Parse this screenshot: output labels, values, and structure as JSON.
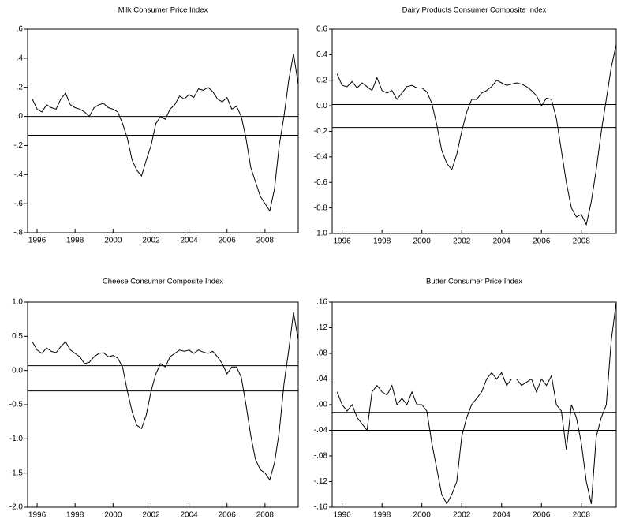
{
  "chart_data": [
    {
      "type": "line",
      "title": "Milk Consumer Price Index",
      "color": "#000000",
      "x": [
        1995.75,
        1996,
        1996.25,
        1996.5,
        1996.75,
        1997,
        1997.25,
        1997.5,
        1997.75,
        1998,
        1998.25,
        1998.5,
        1998.75,
        1999,
        1999.25,
        1999.5,
        1999.75,
        2000,
        2000.25,
        2000.5,
        2000.75,
        2001,
        2001.25,
        2001.5,
        2001.75,
        2002,
        2002.25,
        2002.5,
        2002.75,
        2003,
        2003.25,
        2003.5,
        2003.75,
        2004,
        2004.25,
        2004.5,
        2004.75,
        2005,
        2005.25,
        2005.5,
        2005.75,
        2006,
        2006.25,
        2006.5,
        2006.75,
        2007,
        2007.25,
        2007.5,
        2007.75,
        2008,
        2008.25,
        2008.5,
        2008.75,
        2009,
        2009.25,
        2009.5,
        2009.75
      ],
      "values": [
        0.12,
        0.05,
        0.03,
        0.08,
        0.06,
        0.05,
        0.12,
        0.16,
        0.08,
        0.06,
        0.05,
        0.03,
        0.0,
        0.06,
        0.08,
        0.09,
        0.06,
        0.05,
        0.03,
        -0.05,
        -0.15,
        -0.3,
        -0.37,
        -0.41,
        -0.3,
        -0.2,
        -0.05,
        0.0,
        -0.02,
        0.05,
        0.08,
        0.14,
        0.12,
        0.15,
        0.13,
        0.19,
        0.18,
        0.2,
        0.17,
        0.12,
        0.1,
        0.13,
        0.05,
        0.07,
        0.0,
        -0.15,
        -0.35,
        -0.45,
        -0.55,
        -0.6,
        -0.65,
        -0.5,
        -0.2,
        0.0,
        0.25,
        0.43,
        0.22
      ],
      "hlines": [
        0,
        -0.13
      ],
      "xlim": [
        1995.5,
        2009.75
      ],
      "xticks": [
        1996,
        1998,
        2000,
        2002,
        2004,
        2006,
        2008
      ],
      "ylim": [
        -0.8,
        0.6
      ],
      "yticks": [
        {
          "value": 0.6,
          "label": ".6"
        },
        {
          "value": 0.4,
          "label": ".4"
        },
        {
          "value": 0.2,
          "label": ".2"
        },
        {
          "value": 0,
          "label": ".0"
        },
        {
          "value": -0.2,
          "label": "-.2"
        },
        {
          "value": -0.4,
          "label": "-.4"
        },
        {
          "value": -0.6,
          "label": "-.6"
        },
        {
          "value": -0.8,
          "label": "-.8"
        }
      ]
    },
    {
      "type": "line",
      "title": "Dairy Products Consumer Composite Index",
      "color": "#000000",
      "x": [
        1995.75,
        1996,
        1996.25,
        1996.5,
        1996.75,
        1997,
        1997.25,
        1997.5,
        1997.75,
        1998,
        1998.25,
        1998.5,
        1998.75,
        1999,
        1999.25,
        1999.5,
        1999.75,
        2000,
        2000.25,
        2000.5,
        2000.75,
        2001,
        2001.25,
        2001.5,
        2001.75,
        2002,
        2002.25,
        2002.5,
        2002.75,
        2003,
        2003.25,
        2003.5,
        2003.75,
        2004,
        2004.25,
        2004.5,
        2004.75,
        2005,
        2005.25,
        2005.5,
        2005.75,
        2006,
        2006.25,
        2006.5,
        2006.75,
        2007,
        2007.25,
        2007.5,
        2007.75,
        2008,
        2008.25,
        2008.5,
        2008.75,
        2009,
        2009.25,
        2009.5,
        2009.75
      ],
      "values": [
        0.25,
        0.16,
        0.15,
        0.19,
        0.14,
        0.18,
        0.15,
        0.12,
        0.22,
        0.12,
        0.1,
        0.12,
        0.05,
        0.1,
        0.15,
        0.16,
        0.14,
        0.14,
        0.11,
        0.02,
        -0.15,
        -0.35,
        -0.45,
        -0.5,
        -0.38,
        -0.2,
        -0.05,
        0.05,
        0.05,
        0.1,
        0.12,
        0.15,
        0.2,
        0.18,
        0.16,
        0.17,
        0.18,
        0.17,
        0.15,
        0.12,
        0.08,
        0.0,
        0.06,
        0.05,
        -0.1,
        -0.35,
        -0.6,
        -0.8,
        -0.87,
        -0.85,
        -0.93,
        -0.75,
        -0.5,
        -0.2,
        0.05,
        0.3,
        0.48
      ],
      "hlines": [
        0.01,
        -0.17
      ],
      "xlim": [
        1995.5,
        2009.75
      ],
      "xticks": [
        1996,
        1998,
        2000,
        2002,
        2004,
        2006,
        2008
      ],
      "ylim": [
        -1.0,
        0.6
      ],
      "yticks": [
        0.6,
        0.4,
        0.2,
        {
          "value": 0,
          "label": "0.0"
        },
        -0.2,
        -0.4,
        -0.6,
        -0.8,
        {
          "value": -1.0,
          "label": "-1.0"
        }
      ]
    },
    {
      "type": "line",
      "title": "Cheese Consumer Composite Index",
      "color": "#000000",
      "x": [
        1995.75,
        1996,
        1996.25,
        1996.5,
        1996.75,
        1997,
        1997.25,
        1997.5,
        1997.75,
        1998,
        1998.25,
        1998.5,
        1998.75,
        1999,
        1999.25,
        1999.5,
        1999.75,
        2000,
        2000.25,
        2000.5,
        2000.75,
        2001,
        2001.25,
        2001.5,
        2001.75,
        2002,
        2002.25,
        2002.5,
        2002.75,
        2003,
        2003.25,
        2003.5,
        2003.75,
        2004,
        2004.25,
        2004.5,
        2004.75,
        2005,
        2005.25,
        2005.5,
        2005.75,
        2006,
        2006.25,
        2006.5,
        2006.75,
        2007,
        2007.25,
        2007.5,
        2007.75,
        2008,
        2008.25,
        2008.5,
        2008.75,
        2009,
        2009.25,
        2009.5,
        2009.75
      ],
      "values": [
        0.42,
        0.3,
        0.25,
        0.33,
        0.28,
        0.26,
        0.35,
        0.42,
        0.3,
        0.25,
        0.2,
        0.1,
        0.12,
        0.2,
        0.25,
        0.26,
        0.2,
        0.22,
        0.18,
        0.05,
        -0.3,
        -0.6,
        -0.8,
        -0.85,
        -0.65,
        -0.3,
        -0.05,
        0.1,
        0.05,
        0.2,
        0.25,
        0.3,
        0.28,
        0.3,
        0.25,
        0.3,
        0.27,
        0.25,
        0.28,
        0.2,
        0.1,
        -0.05,
        0.05,
        0.05,
        -0.1,
        -0.5,
        -0.95,
        -1.3,
        -1.45,
        -1.5,
        -1.6,
        -1.35,
        -0.9,
        -0.2,
        0.3,
        0.85,
        0.45
      ],
      "hlines": [
        0.07,
        -0.3
      ],
      "xlim": [
        1995.5,
        2009.75
      ],
      "xticks": [
        1996,
        1998,
        2000,
        2002,
        2004,
        2006,
        2008
      ],
      "ylim": [
        -2.0,
        1.0
      ],
      "yticks": [
        {
          "value": 1.0,
          "label": "1.0"
        },
        0.5,
        {
          "value": 0,
          "label": "0.0"
        },
        -0.5,
        {
          "value": -1.0,
          "label": "-1.0"
        },
        -1.5,
        {
          "value": -2.0,
          "label": "-2.0"
        }
      ]
    },
    {
      "type": "line",
      "title": "Butter Consumer Price Index",
      "color": "#000000",
      "x": [
        1995.75,
        1996,
        1996.25,
        1996.5,
        1996.75,
        1997,
        1997.25,
        1997.5,
        1997.75,
        1998,
        1998.25,
        1998.5,
        1998.75,
        1999,
        1999.25,
        1999.5,
        1999.75,
        2000,
        2000.25,
        2000.5,
        2000.75,
        2001,
        2001.25,
        2001.5,
        2001.75,
        2002,
        2002.25,
        2002.5,
        2002.75,
        2003,
        2003.25,
        2003.5,
        2003.75,
        2004,
        2004.25,
        2004.5,
        2004.75,
        2005,
        2005.25,
        2005.5,
        2005.75,
        2006,
        2006.25,
        2006.5,
        2006.75,
        2007,
        2007.25,
        2007.5,
        2007.75,
        2008,
        2008.25,
        2008.5,
        2008.75,
        2009,
        2009.25,
        2009.5,
        2009.75
      ],
      "values": [
        0.02,
        0.0,
        -0.01,
        0.0,
        -0.02,
        -0.03,
        -0.04,
        0.02,
        0.03,
        0.02,
        0.015,
        0.03,
        0.0,
        0.01,
        0.0,
        0.02,
        0.0,
        0.0,
        -0.01,
        -0.06,
        -0.1,
        -0.14,
        -0.155,
        -0.14,
        -0.12,
        -0.05,
        -0.02,
        0.0,
        0.01,
        0.02,
        0.04,
        0.05,
        0.04,
        0.05,
        0.03,
        0.04,
        0.04,
        0.03,
        0.035,
        0.04,
        0.02,
        0.04,
        0.03,
        0.045,
        0.0,
        -0.01,
        -0.07,
        0.0,
        -0.02,
        -0.06,
        -0.12,
        -0.155,
        -0.05,
        -0.02,
        0.0,
        0.1,
        0.16
      ],
      "hlines": [
        -0.012,
        -0.04
      ],
      "xlim": [
        1995.5,
        2009.75
      ],
      "xticks": [
        1996,
        1998,
        2000,
        2002,
        2004,
        2006,
        2008
      ],
      "ylim": [
        -0.16,
        0.16
      ],
      "yticks": [
        {
          "value": 0.16,
          "label": ".16"
        },
        {
          "value": 0.12,
          "label": ".12"
        },
        {
          "value": 0.08,
          "label": ".08"
        },
        {
          "value": 0.04,
          "label": ".04"
        },
        {
          "value": 0,
          "label": ".00"
        },
        {
          "value": -0.04,
          "label": "-.04"
        },
        {
          "value": -0.08,
          "label": "-.08"
        },
        {
          "value": -0.12,
          "label": "-.12"
        },
        {
          "value": -0.16,
          "label": "-.16"
        }
      ]
    }
  ]
}
